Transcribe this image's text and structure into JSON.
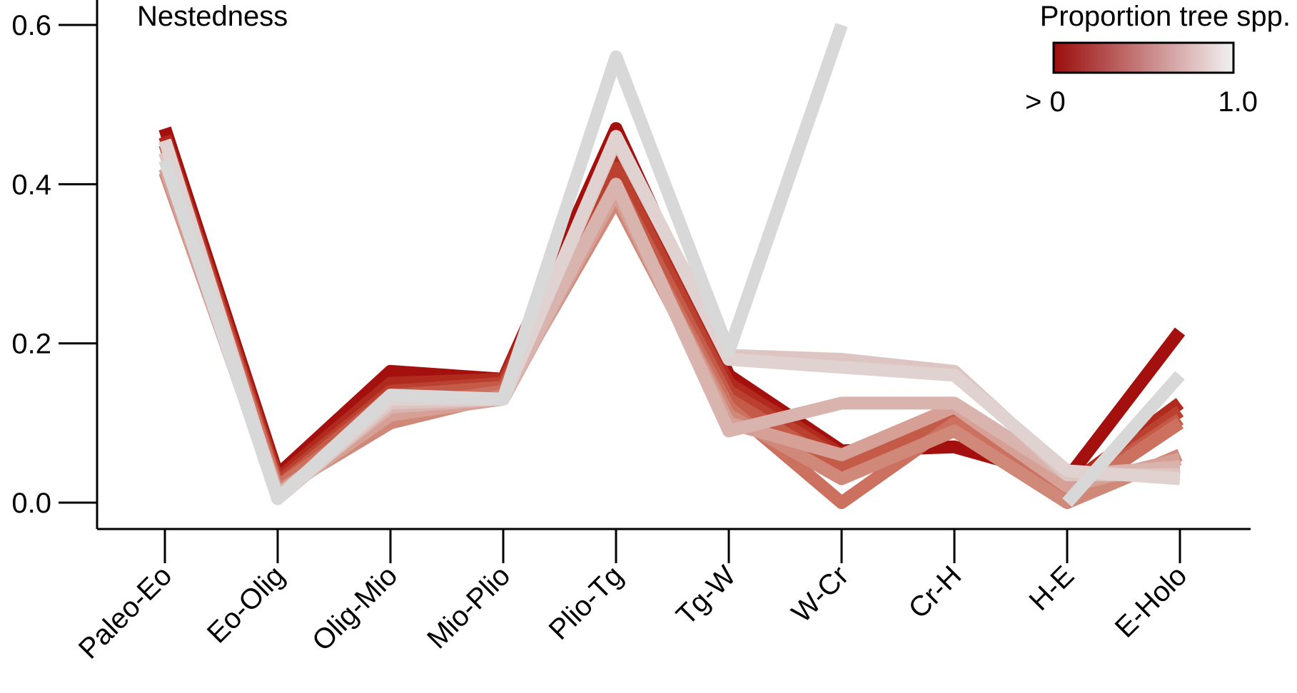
{
  "chart_data": {
    "type": "line",
    "title": "",
    "panel_label": "Nestedness",
    "xlabel": "",
    "ylabel": "",
    "categories": [
      "Paleo-Eo",
      "Eo-Olig",
      "Olig-Mio",
      "Mio-Plio",
      "Plio-Tg",
      "Tg-W",
      "W-Cr",
      "Cr-H",
      "H-E",
      "E-Holo"
    ],
    "ylim": [
      -0.03,
      0.62
    ],
    "yticks": [
      0.0,
      0.2,
      0.4,
      0.6
    ],
    "ytick_labels": [
      "0.0",
      "0.2",
      "0.4",
      "0.6"
    ],
    "grid": false,
    "legend": {
      "title": "Proportion tree spp.",
      "placement": "top-right",
      "low_label": "> 0",
      "high_label": "1.0",
      "low_color": "#9b0d0d",
      "high_color": "#f2f2f2"
    },
    "series": [
      {
        "color": "#a3100e",
        "values": [
          0.47,
          0.035,
          0.165,
          0.155,
          0.47,
          0.16,
          0.065,
          0.07,
          0.03,
          0.215
        ]
      },
      {
        "color": "#b02a1e",
        "values": [
          0.46,
          0.03,
          0.15,
          0.155,
          0.445,
          0.15,
          0.06,
          0.09,
          0.02,
          0.125
        ]
      },
      {
        "color": "#ba4030",
        "values": [
          0.455,
          0.025,
          0.14,
          0.15,
          0.42,
          0.14,
          0.055,
          0.1,
          0.015,
          0.115
        ]
      },
      {
        "color": "#c45a48",
        "values": [
          0.45,
          0.02,
          0.135,
          0.145,
          0.4,
          0.13,
          0.045,
          0.105,
          0.01,
          0.105
        ]
      },
      {
        "color": "#cc7060",
        "values": [
          0.44,
          0.02,
          0.12,
          0.14,
          0.385,
          0.12,
          0.0,
          0.1,
          0.005,
          0.1
        ]
      },
      {
        "color": "#d08878",
        "values": [
          0.415,
          0.015,
          0.1,
          0.135,
          0.38,
          0.11,
          0.03,
          0.09,
          0.0,
          0.06
        ]
      },
      {
        "color": "#d6a096",
        "values": [
          0.42,
          0.01,
          0.11,
          0.13,
          0.39,
          0.1,
          0.06,
          0.12,
          0.02,
          0.055
        ]
      },
      {
        "color": "#d9b4ae",
        "values": [
          0.43,
          0.01,
          0.12,
          0.13,
          0.4,
          0.09,
          0.125,
          0.125,
          0.035,
          0.045
        ]
      },
      {
        "color": "#dcc5c2",
        "values": [
          0.44,
          0.005,
          0.125,
          0.13,
          0.455,
          0.185,
          0.18,
          0.165,
          0.035,
          0.035
        ]
      },
      {
        "color": "#e0d2d0",
        "values": [
          0.455,
          0.005,
          0.13,
          0.13,
          0.46,
          0.18,
          0.17,
          0.16,
          0.04,
          0.03
        ]
      },
      {
        "color": "#d8d8d8",
        "values": [
          0.43,
          0.005,
          0.135,
          0.13,
          0.56,
          0.19,
          0.6,
          null,
          0.0,
          0.16
        ]
      }
    ]
  }
}
